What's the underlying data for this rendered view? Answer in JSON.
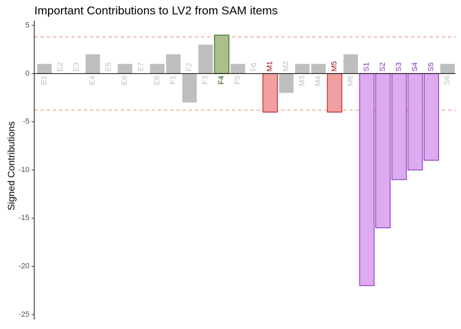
{
  "chart_data": {
    "type": "bar",
    "title": "Important Contributions to LV2 from SAM items",
    "xlabel": "",
    "ylabel": "Signed Contributions",
    "ylim": [
      -25.5,
      5.5
    ],
    "y_ticks": [
      5,
      0,
      -5,
      -10,
      -15,
      -20,
      -25
    ],
    "threshold_lines": [
      3.8,
      -3.8
    ],
    "grid": false,
    "legend": "none",
    "colors": {
      "neutral_fill": "#bebebe",
      "neutral_text": "#bebebe",
      "F_fill": "#a9c08a",
      "F_stroke": "#2a5d10",
      "F_text": "#1d4a07",
      "M_fill": "#f0a0a0",
      "M_stroke": "#b01010",
      "M_text": "#a00d0d",
      "S_fill": "#deabf0",
      "S_stroke": "#7a1fb0",
      "S_text": "#8b2bbf",
      "threshold": "#e8856f"
    },
    "categories": [
      "E1",
      "E2",
      "E3",
      "E4",
      "E5",
      "E6",
      "E7",
      "E8",
      "F1",
      "F2",
      "F3",
      "F4",
      "F5",
      "F6",
      "M1",
      "M2",
      "M3",
      "M4",
      "M5",
      "M6",
      "S1",
      "S2",
      "S3",
      "S4",
      "S5",
      "S6"
    ],
    "values": [
      1,
      0,
      0,
      2,
      0,
      1,
      0,
      1,
      2,
      -3,
      3,
      4,
      1,
      0,
      -4,
      -2,
      1,
      1,
      -4,
      2,
      -22,
      -16,
      -11,
      -10,
      -9,
      1
    ],
    "highlight": [
      "neutral",
      "neutral",
      "neutral",
      "neutral",
      "neutral",
      "neutral",
      "neutral",
      "neutral",
      "neutral",
      "neutral",
      "neutral",
      "F",
      "neutral",
      "neutral",
      "M",
      "neutral",
      "neutral",
      "neutral",
      "M",
      "neutral",
      "S",
      "S",
      "S",
      "S",
      "S",
      "neutral"
    ]
  }
}
